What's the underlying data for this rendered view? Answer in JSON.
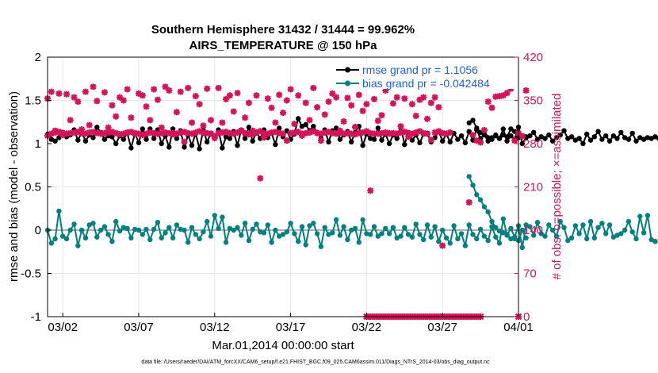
{
  "chart_data": {
    "type": "line",
    "title": "Southern Hemisphere 31432 / 31444 = 99.962%",
    "subtitle": "AIRS_TEMPERATURE @ 150 hPa",
    "xlabel": "Mar.01,2014 00:00:00 start",
    "ylabel_left": "rmse and bias (model - observation)",
    "ylabel_right": "# of obs: o=possible; ×=assimilated",
    "footer": "data file: /Users/raeder/DAI/ATM_forcXX/CAM6_setup/f.e21.FHIST_BGC.f09_025.CAM6assim.011/Diags_NTrS_2014-03/obs_diag_output.nc",
    "xlim": [
      0,
      31
    ],
    "ylim_left": [
      -1,
      2
    ],
    "ylim_right": [
      0,
      420
    ],
    "x_ticks": [
      {
        "v": 1,
        "t": "03/02"
      },
      {
        "v": 6,
        "t": "03/07"
      },
      {
        "v": 11,
        "t": "03/12"
      },
      {
        "v": 16,
        "t": "03/17"
      },
      {
        "v": 21,
        "t": "03/22"
      },
      {
        "v": 26,
        "t": "03/27"
      },
      {
        "v": 31,
        "t": "04/01"
      }
    ],
    "y_ticks_left": [
      {
        "v": -1,
        "t": "-1"
      },
      {
        "v": -0.5,
        "t": "-0.5"
      },
      {
        "v": 0,
        "t": "0"
      },
      {
        "v": 0.5,
        "t": "0.5"
      },
      {
        "v": 1,
        "t": "1"
      },
      {
        "v": 1.5,
        "t": "1.5"
      },
      {
        "v": 2,
        "t": "2"
      }
    ],
    "y_ticks_right": [
      {
        "v": 0,
        "t": "0"
      },
      {
        "v": 70,
        "t": "70"
      },
      {
        "v": 140,
        "t": "140"
      },
      {
        "v": 210,
        "t": "210"
      },
      {
        "v": 280,
        "t": "280"
      },
      {
        "v": 350,
        "t": "350"
      },
      {
        "v": 420,
        "t": "420"
      }
    ],
    "grid": true,
    "legend_placement": "top-right",
    "colors": {
      "rmse": "#000000",
      "bias": "#008080",
      "obs": "#d4145a",
      "zero_line": "#b0b0b0",
      "legend_text": "#1f5fd6"
    },
    "series": [
      {
        "name": "rmse grand pr = 1.1056",
        "axis": "left",
        "style": "line-dots",
        "segments": [
          {
            "x_start": 0,
            "dx": 0.25,
            "values": [
              1.11,
              1.05,
              1.03,
              1.07,
              1.13,
              1.08,
              1.1,
              1.16,
              1.04,
              1.13,
              1.03,
              1.1,
              1.07,
              1.19,
              1.13,
              1.05,
              1.09,
              1.08,
              1.0,
              1.09,
              1.05,
              1.12,
              0.95,
              1.12,
              1.01,
              1.17,
              1.05,
              1.17,
              1.06,
              1.16,
              1.0,
              1.09,
              0.96,
              1.17,
              1.06,
              1.15,
              0.96,
              1.1,
              0.98,
              1.12,
              0.94,
              1.16,
              1.02,
              1.12,
              1.09,
              1.16,
              0.95,
              1.08,
              1.06,
              1.14,
              0.98,
              1.16,
              1.06,
              1.19,
              1.03,
              1.13,
              1.06,
              1.16,
              1.07,
              1.12,
              0.99,
              1.18,
              1.08,
              1.15,
              1.05,
              1.11,
              1.29,
              1.2,
              1.22,
              1.15,
              1.2,
              1.13,
              1.06,
              1.16,
              1.02,
              1.15,
              1.18,
              1.05,
              1.1,
              1.14,
              1.02,
              1.13,
              1.2,
              0.98,
              1.11,
              1.06,
              1.05,
              1.18,
              1.04,
              1.11,
              1.0,
              1.1,
              1.06,
              1.2,
              0.99,
              1.13,
              1.04,
              1.1,
              1.01,
              1.11,
              1.12,
              1.02,
              1.07,
              1.14,
              1.03,
              1.11,
              1.02,
              1.12,
              1.05,
              1.09,
              1.01,
              1.14,
              1.04,
              1.16,
              1.06,
              1.1,
              1.03,
              1.07,
              1.09,
              1.06,
              1.17,
              1.03,
              1.09,
              1.05,
              1.19,
              1.0,
              1.07,
              1.09,
              1.13,
              1.05,
              1.08,
              1.06,
              1.1,
              1.03,
              1.07,
              1.1,
              1.15,
              1.06,
              1.08,
              1.04,
              1.06,
              1.0,
              1.11,
              1.04,
              1.08,
              1.14,
              1.05,
              1.09,
              1.03,
              1.09,
              1.06,
              1.13,
              1.07,
              1.05,
              1.12,
              1.03,
              1.07,
              1.05,
              1.07,
              1.06,
              1.08,
              1.06,
              1.08
            ]
          },
          {
            "x_start": 27.75,
            "dx": 0.25,
            "values": [
              1.24,
              1.27,
              1.18,
              1.13,
              1.15,
              1.07,
              1.05,
              1.1,
              1.06,
              1.1,
              1.08,
              1.17,
              1.14,
              1.07,
              1.09,
              1.08
            ]
          }
        ]
      },
      {
        "name": "bias grand pr = -0.042484",
        "axis": "left",
        "style": "line-dots",
        "segments": [
          {
            "x_start": 0,
            "dx": 0.25,
            "values": [
              0.0,
              -0.15,
              -0.1,
              0.22,
              -0.07,
              -0.1,
              0.0,
              0.07,
              -0.18,
              0.0,
              -0.09,
              0.06,
              0.08,
              -0.08,
              0.0,
              0.04,
              -0.05,
              -0.13,
              0.1,
              -0.01,
              0.03,
              0.02,
              -0.09,
              0.01,
              0.0,
              -0.05,
              0.01,
              -0.11,
              0.01,
              0.09,
              -0.09,
              -0.03,
              0.03,
              -0.09,
              0.06,
              0.01,
              0.0,
              -0.14,
              0.03,
              -0.05,
              -0.1,
              -0.02,
              0.1,
              -0.07,
              0.17,
              0.02,
              0.15,
              -0.14,
              0.02,
              0.0,
              0.03,
              -0.06,
              0.08,
              -0.12,
              0.01,
              0.07,
              -0.02,
              -0.03,
              0.06,
              -0.14,
              0.0,
              -0.07,
              -0.05,
              -0.02,
              0.08,
              -0.04,
              -0.13,
              0.04,
              -0.17,
              0.05,
              0.08,
              -0.04,
              -0.19,
              0.03,
              -0.05,
              -0.03,
              0.12,
              -0.06,
              0.04,
              -0.11,
              0.0,
              0.02,
              -0.14,
              0.12,
              -0.04,
              -0.05,
              0.04,
              -0.07,
              -0.04,
              0.02,
              -0.04,
              0.03,
              -0.09,
              -0.07,
              0.03,
              -0.05,
              -0.08,
              0.07,
              -0.05,
              -0.11,
              0.06,
              -0.08,
              0.04,
              -0.13,
              0.0,
              -0.09,
              -0.15,
              0.05,
              -0.1,
              -0.04,
              -0.18,
              0.06,
              -0.05,
              -0.1,
              0.01,
              -0.07,
              -0.12,
              0.04,
              -0.08,
              -0.15,
              0.13,
              -0.06,
              0.02,
              -0.08,
              0.05,
              -0.2,
              0.06,
              0.04,
              -0.06,
              0.09,
              -0.04,
              -0.07,
              0.06,
              0.0,
              -0.07,
              0.1,
              0.03,
              -0.12,
              -0.09,
              0.05,
              -0.04,
              0.06,
              -0.1,
              0.1,
              -0.09,
              0.03,
              0.08,
              -0.04,
              0.06,
              -0.08,
              -0.06,
              -0.04,
              0.0,
              0.1,
              -0.02,
              -0.1,
              0.16,
              -0.03,
              0.17,
              -0.11,
              -0.13
            ]
          },
          {
            "x_start": 27.75,
            "dx": 0.25,
            "values": [
              0.62,
              0.52,
              0.41,
              0.35,
              0.27,
              0.21,
              0.1,
              0.03,
              -0.01,
              -0.03,
              -0.05,
              -0.1,
              -0.1,
              -0.12,
              0.0,
              -0.09
            ]
          }
        ]
      },
      {
        "name": "obs possible",
        "axis": "right",
        "style": "marker-star",
        "segments": [
          {
            "x_start": 0,
            "dx": 0.25,
            "values": [
              353,
              364,
              301,
              361,
              294,
              360,
              318,
              355,
              348,
              303,
              364,
              310,
              372,
              349,
              297,
              363,
              306,
              342,
              324,
              355,
              350,
              368,
              322,
              296,
              361,
              358,
              340,
              318,
              368,
              351,
              306,
              372,
              366,
              295,
              331,
              364,
              283,
              370,
              314,
              357,
              344,
              309,
              369,
              318,
              289,
              370,
              314,
              352,
              358,
              332,
              362,
              301,
              322,
              346,
              301,
              358,
              224,
              290,
              353,
              338,
              314,
              359,
              330,
              350,
              368,
              312,
              358,
              293,
              346,
              318,
              370,
              339,
              285,
              327,
              348,
              361,
              355,
              301,
              316,
              354,
              342,
              307,
              359,
              333,
              344,
              204,
              352,
              317,
              326,
              366,
              296,
              345,
              355,
              308,
              353,
              291,
              344,
              325,
              351,
              355,
              320,
              346,
              355,
              339,
              115
            ]
          },
          {
            "x_start": 0,
            "dx": 0.25,
            "values": [
              293,
              296,
              298,
              299,
              297,
              296,
              297,
              298,
              299,
              297,
              296,
              298,
              299,
              297,
              296,
              297,
              298,
              299,
              297,
              295,
              296,
              298,
              299,
              297,
              296,
              294,
              296,
              298,
              297,
              296,
              297,
              298,
              297,
              297,
              296,
              298,
              299,
              297,
              296,
              298,
              300,
              298,
              297,
              296,
              292,
              297,
              298,
              299,
              297,
              296,
              298,
              301,
              297,
              295,
              296,
              298,
              300,
              297,
              296,
              298,
              299,
              297,
              296,
              285,
              297,
              298,
              299,
              296,
              297,
              298,
              300,
              297,
              296,
              298,
              299,
              297,
              296,
              298,
              296,
              297,
              296,
              295,
              297,
              298,
              300,
              297,
              296,
              296,
              297,
              298,
              297,
              297,
              296,
              298,
              299,
              297,
              296,
              298,
              300,
              297,
              296,
              286,
              298,
              300,
              297,
              296,
              298
            ]
          },
          {
            "x_start": 27.75,
            "dx": 0.25,
            "values": [
              185,
              294,
              285,
              282,
              302,
              348,
              338,
              356,
              357,
              358,
              362,
              369,
              285,
              297,
              292,
              366
            ]
          }
        ]
      },
      {
        "name": "obs assimilated",
        "axis": "right",
        "style": "marker-cross",
        "segments": [
          {
            "x_start": 21,
            "dx": 0.25,
            "values": [
              0,
              0,
              0,
              0,
              0,
              0,
              0,
              0,
              0,
              0,
              0,
              0,
              0,
              0,
              0,
              0,
              0,
              0,
              0,
              0,
              0,
              0,
              0,
              0,
              0,
              0,
              0,
              0,
              0,
              0,
              0
            ]
          },
          {
            "x_start": 31,
            "dx": 0.25,
            "values": [
              0
            ]
          }
        ]
      }
    ],
    "legend": [
      {
        "label": "rmse grand pr = 1.1056",
        "color": "#000000"
      },
      {
        "label": "bias grand pr = -0.042484",
        "color": "#008080"
      }
    ]
  }
}
